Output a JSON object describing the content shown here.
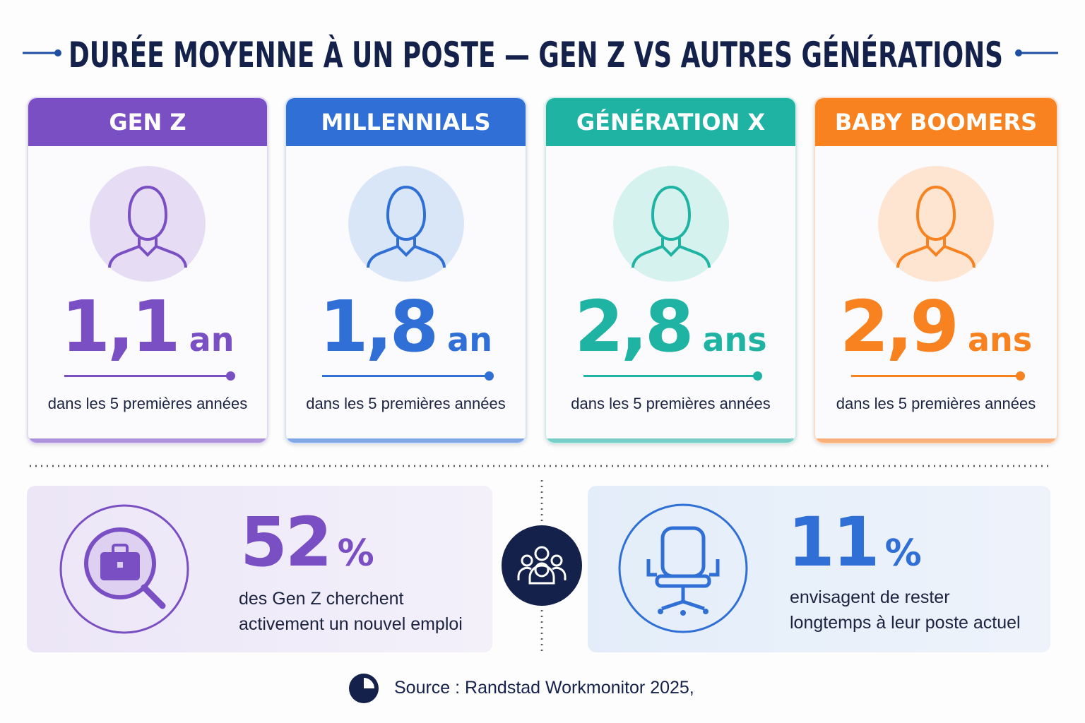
{
  "title": "DURÉE MOYENNE À UN POSTE — GEN Z VS AUTRES GÉNÉRATIONS",
  "cards": [
    {
      "name": "GEN Z",
      "value": "1,1",
      "unit": "an",
      "caption": "dans les 5 premières années"
    },
    {
      "name": "MILLENNIALS",
      "value": "1,8",
      "unit": "an",
      "caption": "dans les 5 premières années"
    },
    {
      "name": "GÉNÉRATION X",
      "value": "2,8",
      "unit": "ans",
      "caption": "dans les 5 premières années"
    },
    {
      "name": "BABY BOOMERS",
      "value": "2,9",
      "unit": "ans",
      "caption": "dans les 5 premières années"
    }
  ],
  "stats": [
    {
      "value": "52",
      "unit": "%",
      "lines": [
        "des Gen Z cherchent",
        "activement un nouvel emploi"
      ]
    },
    {
      "value": "11",
      "unit": "%",
      "lines": [
        "envisagent de rester",
        "longtemps à leur poste actuel"
      ]
    }
  ],
  "source": "Source : Randstad Workmonitor 2025,"
}
